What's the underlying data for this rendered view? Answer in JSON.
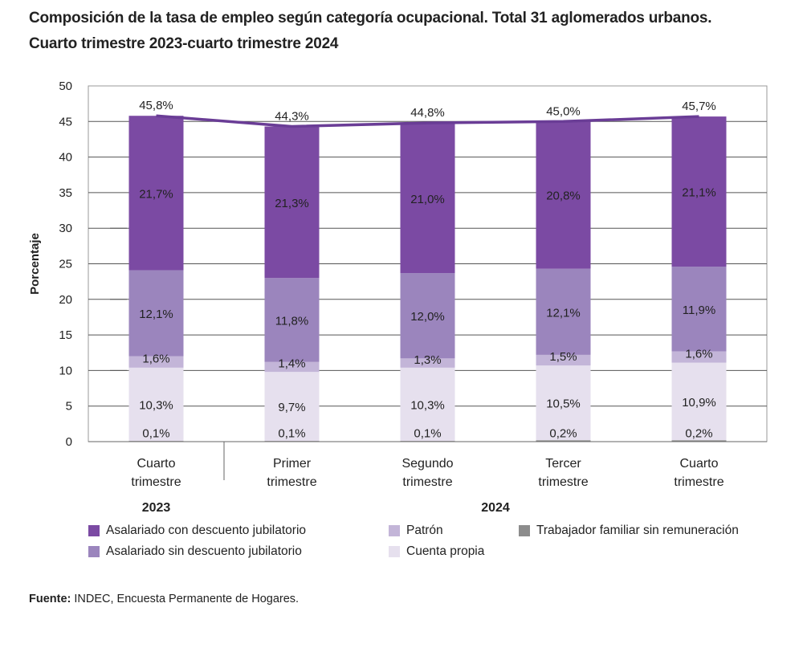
{
  "title_line1": "Composición de la tasa de empleo según categoría ocupacional. Total 31 aglomerados urbanos.",
  "title_line2": "Cuarto trimestre 2023-cuarto trimestre 2024",
  "source_label": "Fuente:",
  "source_text": " INDEC, Encuesta Permanente de Hogares.",
  "colors": {
    "asal_con": "#7b4aa3",
    "asal_sin": "#9b85bd",
    "patron": "#c3b5d8",
    "trab_fam": "#8c8c8c",
    "cuenta_propia": "#e6e0ee",
    "line": "#6a3d96"
  },
  "chart_data": {
    "type": "bar",
    "stacked": true,
    "ylabel": "Porcentaje",
    "ylim": [
      0,
      50
    ],
    "yticks": [
      0,
      5,
      10,
      15,
      20,
      25,
      30,
      35,
      40,
      45,
      50
    ],
    "categories": [
      [
        "Cuarto",
        "trimestre"
      ],
      [
        "Primer",
        "trimestre"
      ],
      [
        "Segundo",
        "trimestre"
      ],
      [
        "Tercer",
        "trimestre"
      ],
      [
        "Cuarto",
        "trimestre"
      ]
    ],
    "year_groups": [
      {
        "label": "2023",
        "categories": [
          0
        ]
      },
      {
        "label": "2024",
        "categories": [
          1,
          2,
          3,
          4
        ]
      }
    ],
    "series": [
      {
        "key": "trab_fam",
        "name": "Trabajador familiar sin remuneración",
        "values": [
          0.1,
          0.1,
          0.1,
          0.2,
          0.2
        ],
        "labels": [
          "0,1%",
          "0,1%",
          "0,1%",
          "0,2%",
          "0,2%"
        ]
      },
      {
        "key": "cuenta_propia",
        "name": "Cuenta propia",
        "values": [
          10.3,
          9.7,
          10.3,
          10.5,
          10.9
        ],
        "labels": [
          "10,3%",
          "9,7%",
          "10,3%",
          "10,5%",
          "10,9%"
        ]
      },
      {
        "key": "patron",
        "name": "Patrón",
        "values": [
          1.6,
          1.4,
          1.3,
          1.5,
          1.6
        ],
        "labels": [
          "1,6%",
          "1,4%",
          "1,3%",
          "1,5%",
          "1,6%"
        ]
      },
      {
        "key": "asal_sin",
        "name": "Asalariado sin descuento jubilatorio",
        "values": [
          12.1,
          11.8,
          12.0,
          12.1,
          11.9
        ],
        "labels": [
          "12,1%",
          "11,8%",
          "12,0%",
          "12,1%",
          "11,9%"
        ]
      },
      {
        "key": "asal_con",
        "name": "Asalariado con descuento jubilatorio",
        "values": [
          21.7,
          21.3,
          21.0,
          20.8,
          21.1
        ],
        "labels": [
          "21,7%",
          "21,3%",
          "21,0%",
          "20,8%",
          "21,1%"
        ]
      }
    ],
    "totals": [
      45.8,
      44.3,
      44.8,
      45.0,
      45.7
    ],
    "total_labels": [
      "45,8%",
      "44,3%",
      "44,8%",
      "45,0%",
      "45,7%"
    ],
    "legend_order": [
      "asal_con",
      "asal_sin",
      "patron",
      "cuenta_propia",
      "trab_fam"
    ],
    "legend": [
      {
        "key": "asal_con",
        "label": "Asalariado con descuento jubilatorio"
      },
      {
        "key": "asal_sin",
        "label": "Asalariado sin descuento jubilatorio"
      },
      {
        "key": "patron",
        "label": "Patrón"
      },
      {
        "key": "cuenta_propia",
        "label": "Cuenta propia"
      },
      {
        "key": "trab_fam",
        "label": "Trabajador familiar sin remuneración"
      }
    ]
  }
}
